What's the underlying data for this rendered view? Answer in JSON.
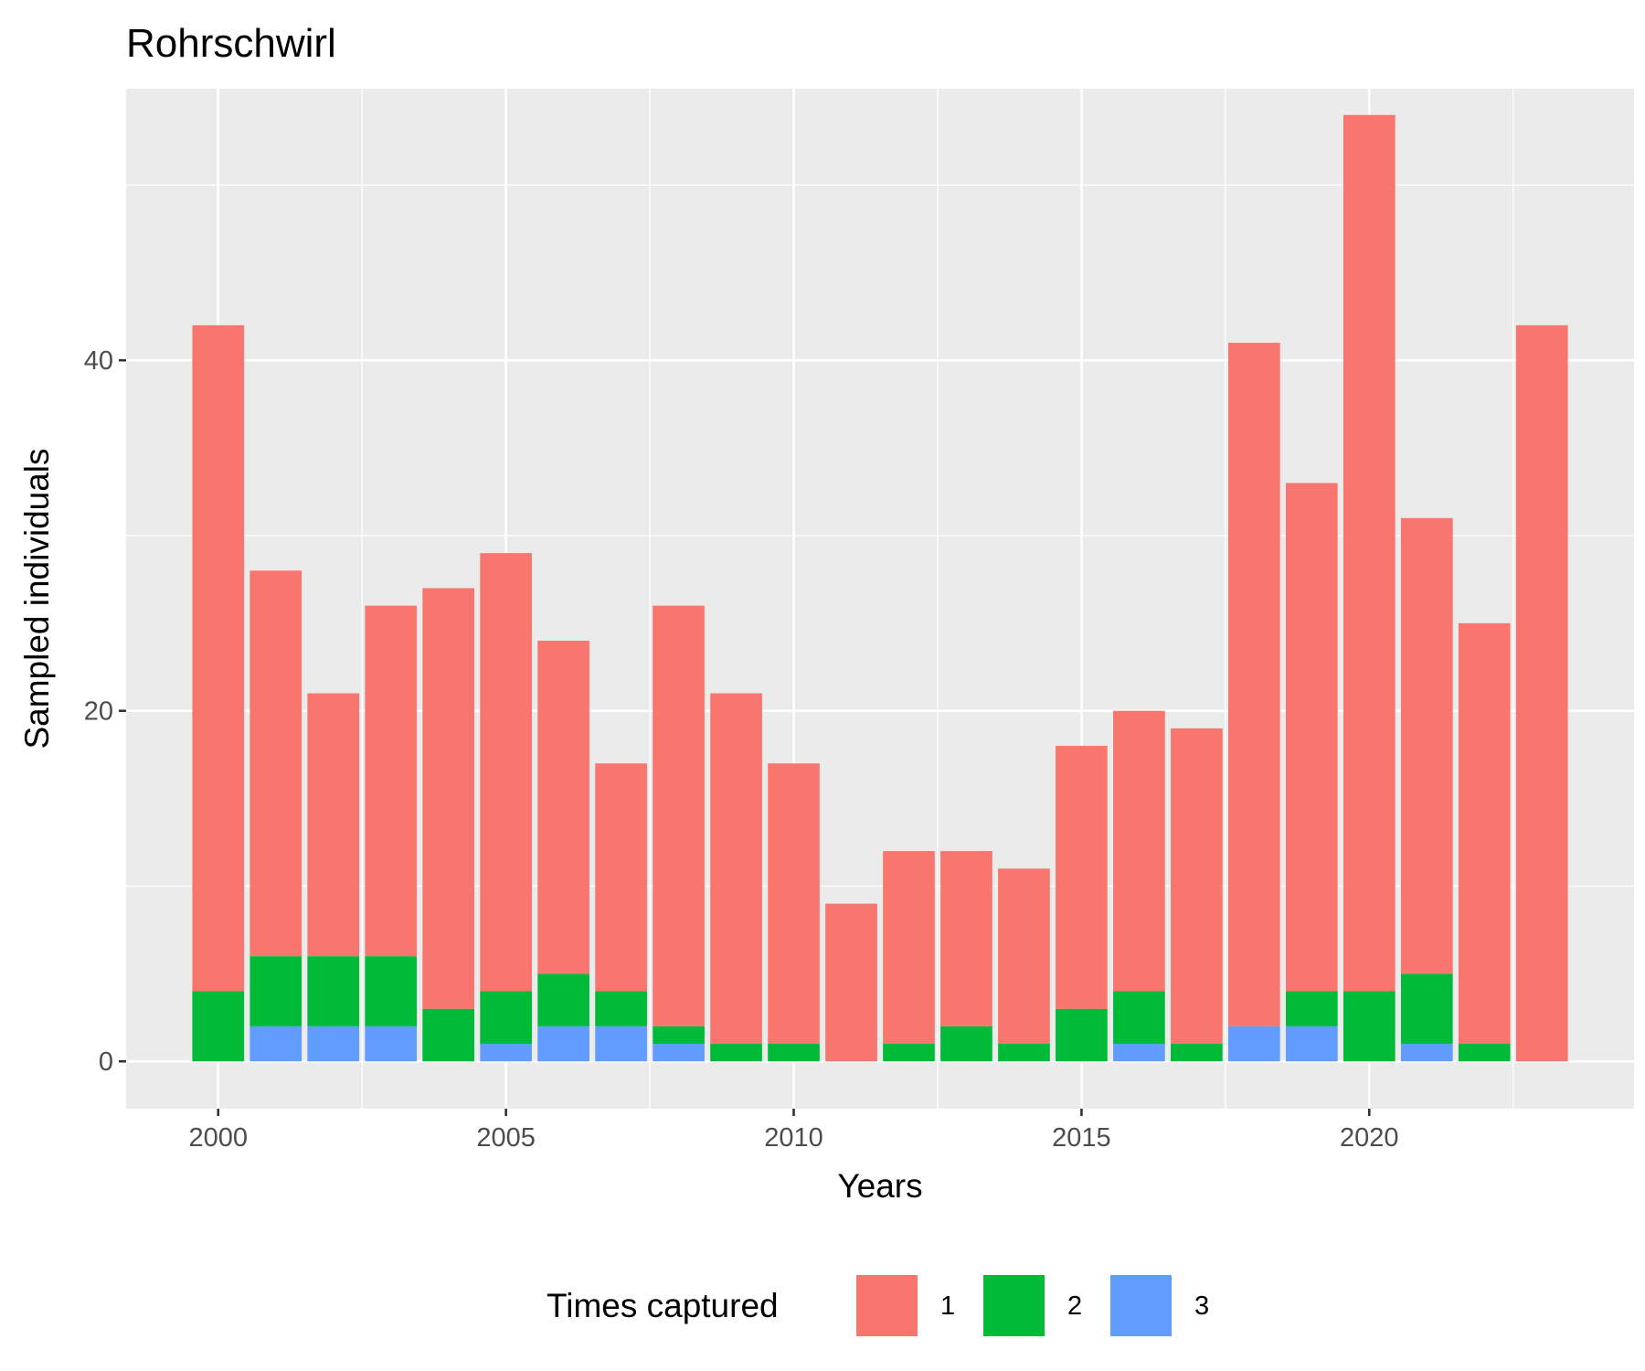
{
  "chart_data": {
    "type": "bar",
    "stacked": true,
    "title": "Rohrschwirl",
    "xlabel": "Years",
    "ylabel": "Sampled individuals",
    "x": [
      2000,
      2001,
      2002,
      2003,
      2004,
      2005,
      2006,
      2007,
      2008,
      2009,
      2010,
      2011,
      2012,
      2013,
      2014,
      2015,
      2016,
      2017,
      2018,
      2019,
      2020,
      2021,
      2022,
      2023
    ],
    "series": [
      {
        "name": "1",
        "color": "#F8766D",
        "values": [
          38,
          22,
          15,
          20,
          24,
          25,
          19,
          13,
          24,
          20,
          16,
          9,
          11,
          10,
          10,
          15,
          16,
          18,
          39,
          29,
          50,
          26,
          24,
          42
        ]
      },
      {
        "name": "2",
        "color": "#00BA38",
        "values": [
          4,
          4,
          4,
          4,
          3,
          3,
          3,
          2,
          1,
          1,
          1,
          0,
          1,
          2,
          1,
          3,
          3,
          1,
          0,
          2,
          4,
          4,
          1,
          0
        ]
      },
      {
        "name": "3",
        "color": "#619CFF",
        "values": [
          0,
          2,
          2,
          2,
          0,
          1,
          2,
          2,
          1,
          0,
          0,
          0,
          0,
          0,
          0,
          0,
          1,
          0,
          2,
          2,
          0,
          1,
          0,
          0
        ]
      }
    ],
    "stack_order_bottom_to_top": [
      "3",
      "2",
      "1"
    ],
    "xlim": [
      1998.4,
      2024.6
    ],
    "ylim": [
      -2.7,
      55.5
    ],
    "x_ticks": [
      2000,
      2005,
      2010,
      2015,
      2020
    ],
    "y_ticks": [
      0,
      20,
      40
    ],
    "y_minor_ticks": [
      10,
      30,
      50
    ],
    "grid": true,
    "panel_background": "#EBEBEB",
    "legend": {
      "title": "Times captured",
      "position": "bottom",
      "items": [
        "1",
        "2",
        "3"
      ]
    }
  }
}
